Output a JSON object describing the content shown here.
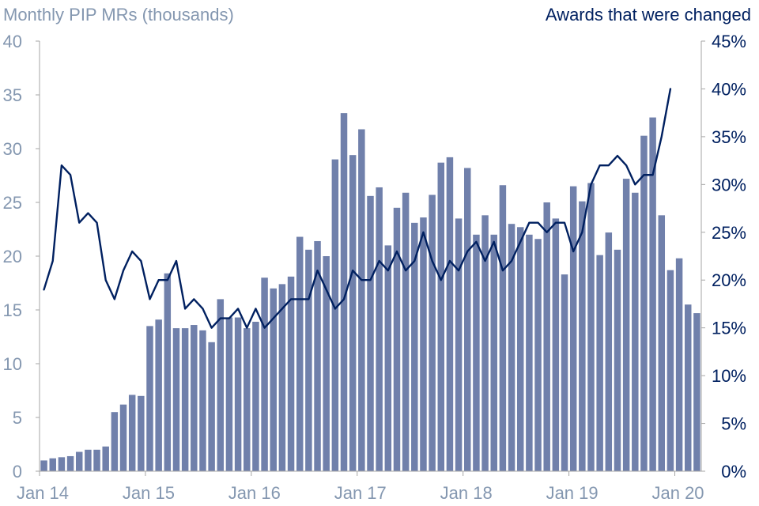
{
  "chart_data": {
    "type": "bar",
    "title": "",
    "y_left_label": "Monthly PIP MRs (thousands)",
    "y_right_label": "Awards that were changed",
    "ylim_left": [
      0,
      40
    ],
    "ylim_right": [
      0,
      45
    ],
    "y_left_ticks": [
      "0",
      "5",
      "10",
      "15",
      "20",
      "25",
      "30",
      "35",
      "40"
    ],
    "y_right_ticks": [
      "0%",
      "5%",
      "10%",
      "15%",
      "20%",
      "25%",
      "30%",
      "35%",
      "40%",
      "45%"
    ],
    "x_tick_labels": [
      {
        "label": "Jan 14",
        "index": 0
      },
      {
        "label": "Jan 15",
        "index": 12
      },
      {
        "label": "Jan 16",
        "index": 24
      },
      {
        "label": "Jan 17",
        "index": 36
      },
      {
        "label": "Jan 18",
        "index": 48
      },
      {
        "label": "Jan 19",
        "index": 60
      },
      {
        "label": "Jan 20",
        "index": 72
      }
    ],
    "bar_color": "#7080ab",
    "line_color": "#002060",
    "series": [
      {
        "type": "bar",
        "axis": "left",
        "values": [
          1.0,
          1.2,
          1.3,
          1.4,
          1.8,
          2.0,
          2.0,
          2.3,
          5.5,
          6.2,
          7.1,
          7.0,
          13.5,
          14.1,
          18.4,
          13.3,
          13.3,
          13.6,
          13.1,
          12.0,
          16.0,
          14.3,
          14.3,
          13.3,
          13.9,
          18.0,
          17.0,
          17.4,
          18.1,
          21.8,
          20.6,
          21.4,
          20.0,
          29.0,
          33.3,
          29.4,
          31.8,
          25.6,
          26.4,
          21.0,
          24.5,
          25.9,
          23.1,
          23.6,
          25.7,
          28.7,
          29.2,
          23.5,
          28.2,
          22.0,
          23.8,
          22.0,
          26.6,
          23.0,
          22.7,
          22.0,
          21.6,
          25.0,
          23.5,
          18.3,
          26.5,
          25.1,
          26.8,
          20.1,
          22.2,
          20.6,
          27.2,
          25.9,
          31.2,
          32.9,
          23.8,
          18.7,
          19.8,
          15.5,
          14.7
        ]
      },
      {
        "type": "line",
        "axis": "right",
        "values": [
          19,
          22,
          32,
          31,
          26,
          27,
          26,
          20,
          18,
          21,
          23,
          22,
          18,
          20,
          20,
          22,
          17,
          18,
          17,
          15,
          16,
          16,
          17,
          15,
          17,
          15,
          16,
          17,
          18,
          18,
          18,
          21,
          19,
          17,
          18,
          21,
          20,
          20,
          22,
          21,
          23,
          21,
          22,
          25,
          22,
          20,
          22,
          21,
          23,
          24,
          22,
          24,
          21,
          22,
          24,
          26,
          26,
          25,
          26,
          26,
          23,
          25,
          30,
          32,
          32,
          33,
          32,
          30,
          31,
          31,
          35,
          40
        ]
      }
    ]
  }
}
